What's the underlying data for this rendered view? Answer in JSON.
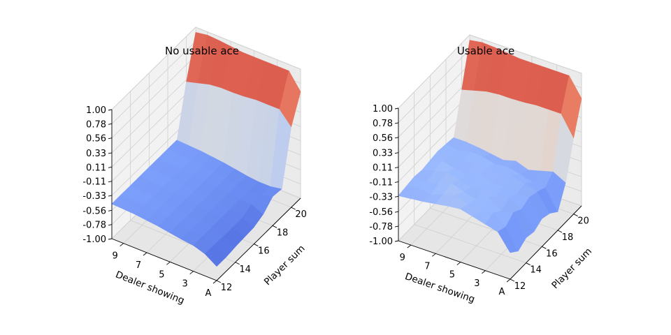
{
  "chart_data": [
    {
      "type": "surface3d",
      "title": "No usable ace",
      "xlabel": "Player sum",
      "ylabel": "Dealer showing",
      "zlabel": "",
      "x": [
        12,
        13,
        14,
        15,
        16,
        17,
        18,
        19,
        20,
        21
      ],
      "y": [
        1,
        2,
        3,
        4,
        5,
        6,
        7,
        8,
        9,
        10
      ],
      "x_ticks": [
        "12",
        "14",
        "16",
        "18",
        "20"
      ],
      "y_ticks": [
        "A",
        "3",
        "5",
        "7",
        "9"
      ],
      "z_ticks": [
        "-1.00",
        "-0.78",
        "-0.56",
        "-0.33",
        "-0.11",
        "0.11",
        "0.33",
        "0.56",
        "0.78",
        "1.00"
      ],
      "zlim": [
        -1,
        1
      ],
      "colormap": "coolwarm",
      "z": [
        [
          -0.78,
          -0.78,
          -0.76,
          -0.75,
          -0.74,
          -0.68,
          -0.55,
          -0.57,
          0.25,
          0.65
        ],
        [
          -0.66,
          -0.66,
          -0.67,
          -0.67,
          -0.67,
          -0.6,
          -0.6,
          -0.6,
          0.45,
          0.9
        ],
        [
          -0.6,
          -0.6,
          -0.6,
          -0.6,
          -0.6,
          -0.6,
          -0.6,
          -0.6,
          0.45,
          0.9
        ],
        [
          -0.58,
          -0.58,
          -0.58,
          -0.58,
          -0.58,
          -0.58,
          -0.58,
          -0.58,
          0.45,
          0.9
        ],
        [
          -0.55,
          -0.55,
          -0.55,
          -0.55,
          -0.55,
          -0.55,
          -0.55,
          -0.55,
          0.43,
          0.9
        ],
        [
          -0.52,
          -0.52,
          -0.52,
          -0.52,
          -0.52,
          -0.52,
          -0.52,
          -0.52,
          0.42,
          0.9
        ],
        [
          -0.5,
          -0.5,
          -0.5,
          -0.5,
          -0.5,
          -0.5,
          -0.5,
          -0.5,
          0.42,
          0.92
        ],
        [
          -0.48,
          -0.48,
          -0.48,
          -0.48,
          -0.48,
          -0.48,
          -0.48,
          -0.48,
          0.4,
          0.94
        ],
        [
          -0.47,
          -0.47,
          -0.47,
          -0.47,
          -0.47,
          -0.47,
          -0.47,
          -0.47,
          0.35,
          0.95
        ],
        [
          -0.46,
          -0.46,
          -0.46,
          -0.46,
          -0.46,
          -0.46,
          -0.46,
          -0.46,
          0.3,
          0.92
        ]
      ]
    },
    {
      "type": "surface3d",
      "title": "Usable ace",
      "xlabel": "Player sum",
      "ylabel": "Dealer showing",
      "zlabel": "",
      "x": [
        12,
        13,
        14,
        15,
        16,
        17,
        18,
        19,
        20,
        21
      ],
      "y": [
        1,
        2,
        3,
        4,
        5,
        6,
        7,
        8,
        9,
        10
      ],
      "x_ticks": [
        "12",
        "14",
        "16",
        "18",
        "20"
      ],
      "y_ticks": [
        "A",
        "3",
        "5",
        "7",
        "9"
      ],
      "z_ticks": [
        "-1.00",
        "-0.78",
        "-0.56",
        "-0.33",
        "-0.11",
        "0.11",
        "0.33",
        "0.56",
        "0.78",
        "1.00"
      ],
      "zlim": [
        -1,
        1
      ],
      "colormap": "coolwarm",
      "z": [
        [
          -0.6,
          -0.7,
          -0.62,
          -0.65,
          -0.58,
          -0.62,
          -0.72,
          -0.4,
          0.15,
          0.62
        ],
        [
          -0.35,
          -0.4,
          -0.3,
          -0.38,
          -0.32,
          -0.36,
          -0.42,
          -0.3,
          0.45,
          0.9
        ],
        [
          -0.3,
          -0.25,
          -0.35,
          -0.28,
          -0.33,
          -0.3,
          -0.4,
          -0.35,
          0.45,
          0.9
        ],
        [
          -0.25,
          -0.3,
          -0.2,
          -0.32,
          -0.28,
          -0.25,
          -0.35,
          -0.4,
          0.45,
          0.9
        ],
        [
          -0.2,
          -0.25,
          -0.3,
          -0.22,
          -0.3,
          -0.28,
          -0.3,
          -0.33,
          0.43,
          0.9
        ],
        [
          -0.22,
          -0.18,
          -0.25,
          -0.3,
          -0.24,
          -0.26,
          -0.32,
          -0.38,
          0.42,
          0.9
        ],
        [
          -0.25,
          -0.22,
          -0.18,
          -0.26,
          -0.3,
          -0.22,
          -0.28,
          -0.35,
          0.42,
          0.92
        ],
        [
          -0.28,
          -0.3,
          -0.24,
          -0.2,
          -0.27,
          -0.3,
          -0.26,
          -0.32,
          0.4,
          0.94
        ],
        [
          -0.3,
          -0.26,
          -0.3,
          -0.24,
          -0.22,
          -0.28,
          -0.3,
          -0.3,
          0.35,
          0.95
        ],
        [
          -0.32,
          -0.3,
          -0.28,
          -0.3,
          -0.28,
          -0.26,
          -0.28,
          -0.3,
          0.3,
          0.92
        ]
      ]
    }
  ]
}
